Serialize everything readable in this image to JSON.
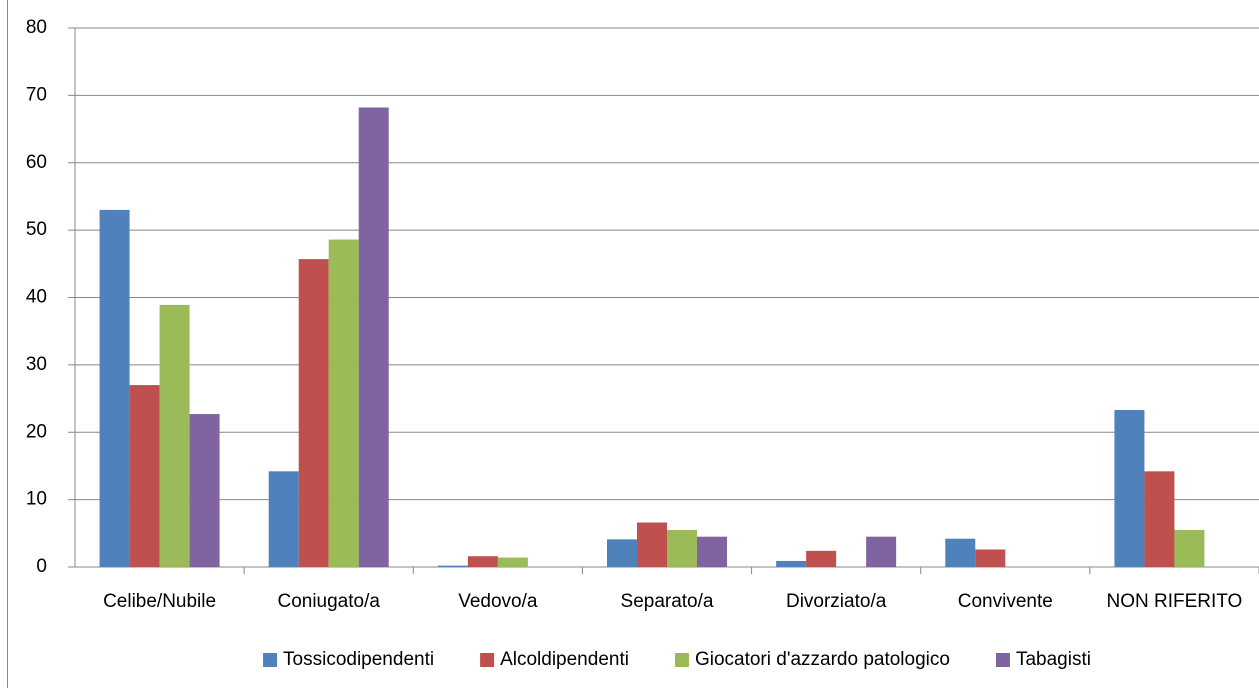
{
  "chart_data": {
    "type": "bar",
    "categories": [
      "Celibe/Nubile",
      "Coniugato/a",
      "Vedovo/a",
      "Separato/a",
      "Divorziato/a",
      "Convivente",
      "NON RIFERITO"
    ],
    "series": [
      {
        "name": "Tossicodipendenti",
        "color": "#4f81bd",
        "values": [
          53.0,
          14.2,
          0.2,
          4.1,
          0.9,
          4.2,
          23.3
        ]
      },
      {
        "name": "Alcoldipendenti",
        "color": "#c0504d",
        "values": [
          27.0,
          45.7,
          1.6,
          6.6,
          2.4,
          2.6,
          14.2
        ]
      },
      {
        "name": "Giocatori d'azzardo patologico",
        "color": "#9bbb59",
        "values": [
          38.9,
          48.6,
          1.4,
          5.5,
          0,
          0,
          5.5
        ]
      },
      {
        "name": "Tabagisti",
        "color": "#8064a2",
        "values": [
          22.7,
          68.2,
          0,
          4.5,
          4.5,
          0,
          0
        ]
      }
    ],
    "ylim": [
      0,
      80
    ],
    "yticks": [
      0,
      10,
      20,
      30,
      40,
      50,
      60,
      70,
      80
    ],
    "grid": true,
    "legend": "bottom"
  }
}
